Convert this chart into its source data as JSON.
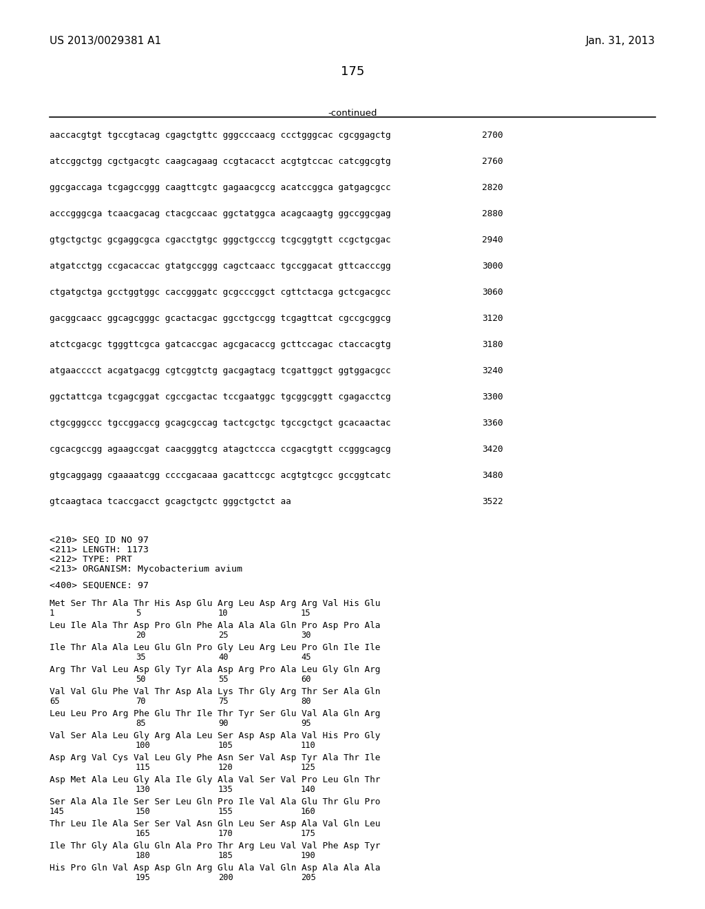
{
  "header_left": "US 2013/0029381 A1",
  "header_right": "Jan. 31, 2013",
  "page_number": "175",
  "continued_label": "-continued",
  "background_color": "#ffffff",
  "text_color": "#000000",
  "font_size_header": 11,
  "font_size_page": 13,
  "font_size_body": 9.5,
  "font_size_mono": 9.2,
  "sequence_lines": [
    [
      "aaccacgtgt tgccgtacag cgagctgttc gggcccaacg ccctgggcac cgcggagctg",
      "2700"
    ],
    [
      "atccggctgg cgctgacgtc caagcagaag ccgtacacct acgtgtccac catcggcgtg",
      "2760"
    ],
    [
      "ggcgaccaga tcgagccggg caagttcgtc gagaacgccg acatccggca gatgagcgcc",
      "2820"
    ],
    [
      "acccgggcga tcaacgacag ctacgccaac ggctatggca acagcaagtg ggccggcgag",
      "2880"
    ],
    [
      "gtgctgctgc gcgaggcgca cgacctgtgc gggctgcccg tcgcggtgtt ccgctgcgac",
      "2940"
    ],
    [
      "atgatcctgg ccgacaccac gtatgccggg cagctcaacc tgccggacat gttcacccgg",
      "3000"
    ],
    [
      "ctgatgctga gcctggtggc caccgggatc gcgcccggct cgttctacga gctcgacgcc",
      "3060"
    ],
    [
      "gacggcaacc ggcagcgggc gcactacgac ggcctgccgg tcgagttcat cgccgcggcg",
      "3120"
    ],
    [
      "atctcgacgc tgggttcgca gatcaccgac agcgacaccg gcttccagac ctaccacgtg",
      "3180"
    ],
    [
      "atgaacccct acgatgacgg cgtcggtctg gacgagtacg tcgattggct ggtggacgcc",
      "3240"
    ],
    [
      "ggctattcga tcgagcggat cgccgactac tccgaatggc tgcggcggtt cgagacctcg",
      "3300"
    ],
    [
      "ctgcgggccc tgccggaccg gcagcgccag tactcgctgc tgccgctgct gcacaactac",
      "3360"
    ],
    [
      "cgcacgccgg agaagccgat caacgggtcg atagctccca ccgacgtgtt ccgggcagcg",
      "3420"
    ],
    [
      "gtgcaggagg cgaaaatcgg ccccgacaaa gacattccgc acgtgtcgcc gccggtcatc",
      "3480"
    ],
    [
      "gtcaagtaca tcaccgacct gcagctgctc gggctgctct aa",
      "3522"
    ]
  ],
  "metadata_lines": [
    "<210> SEQ ID NO 97",
    "<211> LENGTH: 1173",
    "<212> TYPE: PRT",
    "<213> ORGANISM: Mycobacterium avium"
  ],
  "sequence_label": "<400> SEQUENCE: 97",
  "protein_lines": [
    [
      "Met Ser Thr Ala Thr His Asp Glu Arg Leu Asp Arg Arg Val His Glu",
      "1",
      "5",
      "10",
      "15"
    ],
    [
      "Leu Ile Ala Thr Asp Pro Gln Phe Ala Ala Ala Gln Pro Asp Pro Ala",
      "20",
      "25",
      "30"
    ],
    [
      "Ile Thr Ala Ala Leu Glu Gln Pro Gly Leu Arg Leu Pro Gln Ile Ile",
      "35",
      "40",
      "45"
    ],
    [
      "Arg Thr Val Leu Asp Gly Tyr Ala Asp Arg Pro Ala Leu Gly Gln Arg",
      "50",
      "55",
      "60"
    ],
    [
      "Val Val Glu Phe Val Thr Asp Ala Lys Thr Gly Arg Thr Ser Ala Gln",
      "65",
      "70",
      "75",
      "80"
    ],
    [
      "Leu Leu Pro Arg Phe Glu Thr Ile Thr Tyr Ser Glu Val Ala Gln Arg",
      "85",
      "90",
      "95"
    ],
    [
      "Val Ser Ala Leu Gly Arg Ala Leu Ser Asp Asp Ala Val His Pro Gly",
      "100",
      "105",
      "110"
    ],
    [
      "Asp Arg Val Cys Val Leu Gly Phe Asn Ser Val Asp Tyr Ala Thr Ile",
      "115",
      "120",
      "125"
    ],
    [
      "Asp Met Ala Leu Gly Ala Ile Gly Ala Val Ser Val Pro Leu Gln Thr",
      "130",
      "135",
      "140"
    ],
    [
      "Ser Ala Ala Ile Ser Ser Leu Gln Pro Ile Val Ala Glu Thr Glu Pro",
      "145",
      "150",
      "155",
      "160"
    ],
    [
      "Thr Leu Ile Ala Ser Ser Val Asn Gln Leu Ser Asp Ala Val Gln Leu",
      "165",
      "170",
      "175"
    ],
    [
      "Ile Thr Gly Ala Glu Gln Ala Pro Thr Arg Leu Val Val Phe Asp Tyr",
      "180",
      "185",
      "190"
    ],
    [
      "His Pro Gln Val Asp Asp Gln Arg Glu Ala Val Gln Asp Ala Ala Ala",
      "195",
      "200",
      "205"
    ]
  ],
  "protein_numbers": [
    [
      "1",
      "5",
      "10",
      "15"
    ],
    [
      "20",
      "25",
      "30"
    ],
    [
      "35",
      "40",
      "45"
    ],
    [
      "50",
      "55",
      "60"
    ],
    [
      "65",
      "70",
      "75",
      "80"
    ],
    [
      "85",
      "90",
      "95"
    ],
    [
      "100",
      "105",
      "110"
    ],
    [
      "115",
      "120",
      "125"
    ],
    [
      "130",
      "135",
      "140"
    ],
    [
      "145",
      "150",
      "155",
      "160"
    ],
    [
      "165",
      "170",
      "175"
    ],
    [
      "180",
      "185",
      "190"
    ],
    [
      "195",
      "200",
      "205"
    ]
  ]
}
